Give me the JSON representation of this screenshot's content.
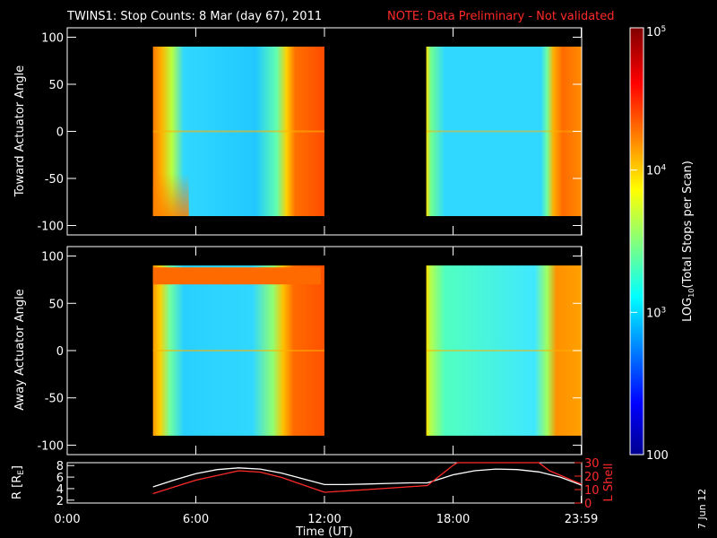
{
  "header": {
    "title": "TWINS1: Stop Counts:  8 Mar (day  67), 2011",
    "note": "NOTE: Data Preliminary - Not validated"
  },
  "footer": {
    "date_stamp": "7 Jun 12"
  },
  "colors": {
    "background": "#000000",
    "frame": "#ffffff",
    "note": "#ff2a2a",
    "l_shell": "#ff2a2a",
    "radius": "#ffffff"
  },
  "chart_data": [
    {
      "type": "heatmap",
      "ylabel": "Toward Actuator Angle",
      "ylim": [
        -110,
        110
      ],
      "y_ticks": [
        "100",
        "50",
        "0",
        "-50",
        "-100"
      ],
      "y_tick_values": [
        100,
        50,
        0,
        -50,
        -100
      ],
      "xlim": [
        0,
        24
      ],
      "data_blocks": [
        {
          "start_ut": 4.0,
          "end_ut": 12.0,
          "angle_range": [
            -90,
            90
          ]
        },
        {
          "start_ut": 16.75,
          "end_ut": 23.98,
          "angle_range": [
            -90,
            90
          ]
        }
      ]
    },
    {
      "type": "heatmap",
      "ylabel": "Away Actuator Angle",
      "ylim": [
        -110,
        110
      ],
      "y_ticks": [
        "100",
        "50",
        "0",
        "-50",
        "-100"
      ],
      "y_tick_values": [
        100,
        50,
        0,
        -50,
        -100
      ],
      "xlim": [
        0,
        24
      ],
      "data_blocks": [
        {
          "start_ut": 4.0,
          "end_ut": 12.0,
          "angle_range": [
            -90,
            90
          ]
        },
        {
          "start_ut": 16.75,
          "end_ut": 23.98,
          "angle_range": [
            -90,
            90
          ]
        }
      ]
    },
    {
      "type": "line",
      "xlabel": "Time (UT)",
      "x_ticks": [
        "0:00",
        "6:00",
        "12:00",
        "18:00",
        "23:59"
      ],
      "x_tick_values": [
        0,
        6,
        12,
        18,
        23.98
      ],
      "xlim": [
        0,
        24
      ],
      "left_axis": {
        "label": "R [R",
        "label_sub": "E",
        "label_close": "]",
        "ylim": [
          1.5,
          8.5
        ],
        "ticks": [
          "8",
          "6",
          "4",
          "2"
        ],
        "tick_values": [
          8,
          6,
          4,
          2
        ]
      },
      "right_axis": {
        "label": "L Shell",
        "ylim": [
          0,
          30
        ],
        "ticks": [
          "30",
          "20",
          "10",
          "0"
        ],
        "tick_values": [
          30,
          20,
          10,
          0
        ]
      },
      "series": [
        {
          "axis": "left",
          "x": [
            4.0,
            5.0,
            6.0,
            7.0,
            8.0,
            9.0,
            10.0,
            11.0,
            12.0,
            13.0,
            14.0,
            15.0,
            16.0,
            16.8,
            17.5,
            18.0,
            19.0,
            20.0,
            21.0,
            22.0,
            23.0,
            24.0
          ],
          "y": [
            4.3,
            5.5,
            6.6,
            7.3,
            7.6,
            7.4,
            6.7,
            5.7,
            4.7,
            4.7,
            4.8,
            4.9,
            5.0,
            5.0,
            5.8,
            6.4,
            7.1,
            7.4,
            7.3,
            6.9,
            6.0,
            4.6
          ]
        },
        {
          "axis": "right",
          "x": [
            4.0,
            6.0,
            8.0,
            9.0,
            10.0,
            12.0,
            14.0,
            16.8,
            18.0,
            18.2,
            22.0,
            22.5,
            24.0
          ],
          "y": [
            7,
            17,
            24,
            23,
            19,
            8,
            10,
            13,
            28,
            30,
            30,
            24,
            14
          ]
        }
      ]
    },
    {
      "type": "heatmap",
      "ylabel": "LOG",
      "ylabel_sub": "10",
      "ylabel_rest": "(Total Stops per Scan)",
      "scale": "log",
      "range": [
        100,
        100000
      ],
      "ticks": [
        "10",
        "10",
        "10",
        "100"
      ],
      "tick_sups": [
        "5",
        "4",
        "3",
        ""
      ],
      "tick_values": [
        100000,
        10000,
        1000,
        100
      ]
    }
  ]
}
